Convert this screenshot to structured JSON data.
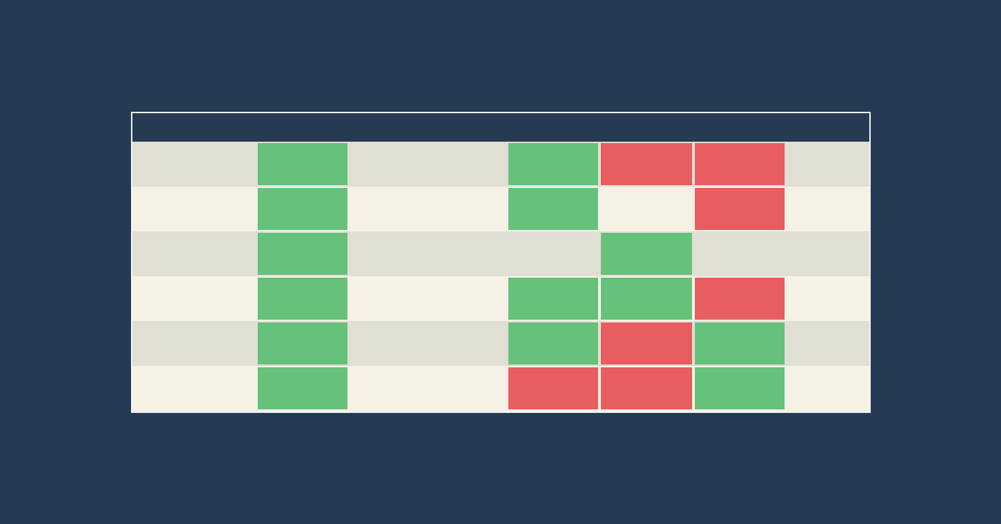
{
  "colors": {
    "background": "#243b53",
    "header": "#243b53",
    "row_odd": "#dfdfd3",
    "row_even": "#f5f2e5",
    "positive": "#66c17b",
    "negative": "#e85d5f",
    "border": "#f2f2ee"
  },
  "chart_data": {
    "type": "table",
    "title": "",
    "column_headers": [
      "",
      "",
      "",
      "",
      "",
      "",
      ""
    ],
    "row_labels": [
      "",
      "",
      "",
      "",
      "",
      ""
    ],
    "legend": "none",
    "cell_states": [
      [
        "",
        "positive",
        "",
        "positive",
        "negative",
        "negative",
        ""
      ],
      [
        "",
        "positive",
        "",
        "positive",
        "",
        "negative",
        ""
      ],
      [
        "",
        "positive",
        "",
        "",
        "positive",
        "",
        ""
      ],
      [
        "",
        "positive",
        "",
        "positive",
        "positive",
        "negative",
        ""
      ],
      [
        "",
        "positive",
        "",
        "positive",
        "negative",
        "positive",
        ""
      ],
      [
        "",
        "positive",
        "",
        "negative",
        "negative",
        "positive",
        ""
      ]
    ]
  }
}
